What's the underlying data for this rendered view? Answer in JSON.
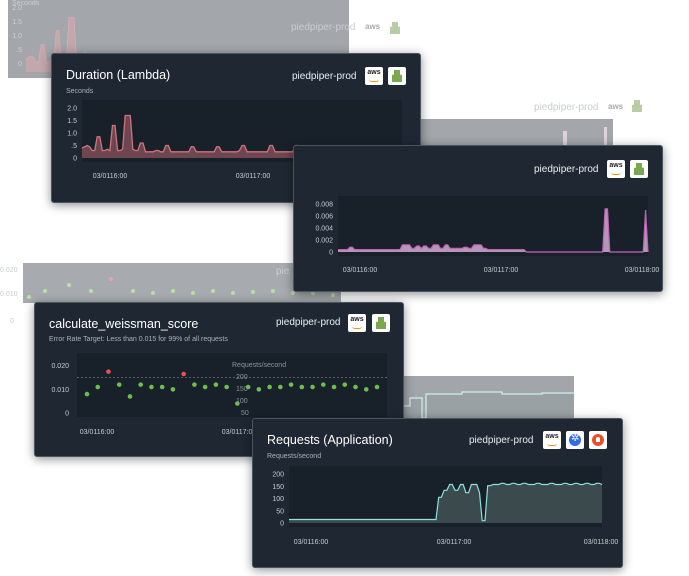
{
  "colors": {
    "card_bg": "#1f2832",
    "plot_bg": "#18212a",
    "duration_line": "#d1737e",
    "duration_fill": "#6e4650",
    "error_line": "#c064b6",
    "error_fill": "#b795ba",
    "requests_line": "#8fe0df",
    "requests_fill": "#3b4a4d",
    "point_green": "#6cc04a",
    "point_red": "#ef4f4f"
  },
  "ghosts": {
    "duration": {
      "unit": "Seconds",
      "yticks": [
        "2.0",
        "1.5",
        "1.0",
        ".5",
        "0"
      ],
      "brand": "piedpiper-prod",
      "aws_icon": "aws-icon",
      "lambda_icon": "lambda-icon"
    },
    "errors": {
      "brand": "piedpiper-prod",
      "aws_icon": "aws-icon",
      "lambda_icon": "lambda-icon"
    },
    "weissman": {
      "yticks": [
        "0.020",
        "0.010",
        "0"
      ],
      "brand": "pie"
    }
  },
  "duration": {
    "title": "Duration (Lambda)",
    "brand": "piedpiper-prod",
    "unit": "Seconds",
    "icons": [
      "aws-icon",
      "lambda-icon"
    ],
    "yticks": [
      "2.0",
      "1.5",
      "1.0",
      ".5",
      "0"
    ],
    "xticks": [
      "03/0116:00",
      "03/0117:00",
      "03/0118:00"
    ]
  },
  "errors": {
    "brand": "piedpiper-prod",
    "icons": [
      "aws-icon",
      "lambda-icon"
    ],
    "yticks": [
      "0.008",
      "0.006",
      "0.004",
      "0.002",
      "0"
    ],
    "xticks": [
      "03/0116:00",
      "03/0117:00",
      "03/0118:00"
    ]
  },
  "weissman": {
    "title": "calculate_weissman_score",
    "brand": "piedpiper-prod",
    "subtitle": "Error Rate Target: Less than 0.015 for 99% of all requests",
    "icons": [
      "aws-icon",
      "lambda-icon"
    ],
    "yticks": [
      "0.020",
      "0.010",
      "0"
    ],
    "xticks": [
      "03/0116:00",
      "03/0117:00"
    ]
  },
  "requests_peek": {
    "unit": "Requests/second",
    "yticks": [
      "200",
      "150",
      "100",
      "50",
      "0"
    ]
  },
  "requests": {
    "title": "Requests (Application)",
    "brand": "piedpiper-prod",
    "unit": "Requests/second",
    "icons": [
      "aws-icon",
      "kubernetes-icon",
      "prometheus-icon"
    ],
    "yticks": [
      "200",
      "150",
      "100",
      "50",
      "0"
    ],
    "xticks": [
      "03/0116:00",
      "03/0117:00",
      "03/0118:00"
    ]
  },
  "chart_data": [
    {
      "type": "area",
      "title": "Duration (Lambda)",
      "ylabel": "Seconds",
      "ylim": [
        0,
        2.0
      ],
      "xticks": [
        "03/0116:00",
        "03/0117:00",
        "03/0118:00"
      ],
      "values": [
        0.4,
        0.45,
        0.5,
        0.45,
        0.3,
        0.3,
        0.85,
        0.85,
        0.3,
        0.3,
        0.35,
        0.3,
        1.3,
        1.3,
        0.3,
        0.3,
        0.35,
        1.7,
        1.7,
        1.7,
        0.35,
        0.3,
        0.3,
        0.6,
        0.6,
        0.25,
        0.25,
        0.25,
        0.25,
        0.3,
        0.3,
        0.25,
        0.25,
        0.5,
        0.5,
        0.25,
        0.25,
        0.25,
        0.25,
        0.25,
        0.25,
        0.25,
        0.25,
        0.45,
        0.45,
        0.25,
        0.25,
        0.25,
        0.25,
        0.25,
        0.25,
        0.25,
        0.25,
        0.45,
        0.45,
        0.25,
        0.25,
        0.25,
        0.25,
        0.25,
        0.25,
        0.25,
        0.3,
        0.5,
        0.5,
        0.25,
        0.25,
        0.25,
        0.25,
        0.25,
        0.25,
        0.25,
        0.25,
        0.25,
        0.5,
        0.5,
        0.25,
        0.25,
        0.25,
        0.25,
        0.25,
        0.25,
        0.25,
        0.25,
        0.5,
        0.5,
        0.25,
        0.25,
        0.25,
        0.25,
        0.25,
        0.25,
        0.25,
        0.25,
        0.45,
        0.45,
        0.25,
        0.25,
        0.25,
        0.25,
        0.25,
        0.25,
        0.25,
        0.25,
        0.25,
        0.4,
        0.4,
        0.25,
        0.25,
        0.25,
        0.25,
        0.25,
        0.25,
        0.25,
        0.25,
        0.45,
        0.45,
        0.25,
        0.25,
        0.25,
        0.25,
        0.25,
        0.25,
        0.25,
        0.25,
        0.35,
        0.35
      ]
    },
    {
      "type": "area",
      "ylim": [
        0,
        0.008
      ],
      "xticks": [
        "03/0116:00",
        "03/0117:00",
        "03/0118:00"
      ],
      "values": [
        0.0004,
        0.0004,
        0.0004,
        0.0004,
        0.0004,
        0.0008,
        0.0008,
        0.0004,
        0.0004,
        0.0004,
        0.0004,
        0.0004,
        0.0004,
        0.0004,
        0.0004,
        0.0004,
        0.0004,
        0.0004,
        0.0004,
        0.0004,
        0.0004,
        0.0004,
        0.0004,
        0.0004,
        0.0004,
        0.0004,
        0.0004,
        0.0012,
        0.0012,
        0.0012,
        0.0012,
        0.0006,
        0.0006,
        0.001,
        0.001,
        0.0006,
        0.001,
        0.001,
        0.0006,
        0.0006,
        0.0012,
        0.0012,
        0.0012,
        0.0006,
        0.0006,
        0.0012,
        0.0012,
        0.0006,
        0.0006,
        0.0006,
        0.0006,
        0.0006,
        0.0006,
        0.0008,
        0.0008,
        0.0006,
        0.0006,
        0.0012,
        0.0012,
        0.0012,
        0.0012,
        0.0006,
        0.0006,
        0.0004,
        0.0004,
        0.0004,
        0.0004,
        0.0004,
        0.0004,
        0.0004,
        0.0004,
        0.0004,
        0.0004,
        0.0004,
        0.0004,
        0.0004,
        0.0004,
        0.0004,
        0.0004,
        0,
        0,
        0,
        0,
        0,
        0,
        0,
        0,
        0,
        0,
        0,
        0,
        0,
        0,
        0,
        0,
        0,
        0,
        0,
        0,
        0,
        0,
        0,
        0,
        0,
        0,
        0,
        0,
        0,
        0,
        0,
        0,
        0,
        0.0072,
        0.0072,
        0,
        0,
        0,
        0,
        0,
        0,
        0,
        0,
        0,
        0,
        0,
        0,
        0,
        0,
        0,
        0.007,
        0
      ]
    },
    {
      "type": "scatter",
      "title": "calculate_weissman_score",
      "subtitle": "Error Rate Target: Less than 0.015 for 99% of all requests",
      "ylim": [
        0,
        0.022
      ],
      "threshold": 0.015,
      "xticks": [
        "03/0116:00",
        "03/0117:00"
      ],
      "points": [
        {
          "x": 0,
          "y": 0.008,
          "color": "green"
        },
        {
          "x": 1,
          "y": 0.011,
          "color": "green"
        },
        {
          "x": 2,
          "y": 0.0175,
          "color": "red"
        },
        {
          "x": 3,
          "y": 0.012,
          "color": "green"
        },
        {
          "x": 4,
          "y": 0.007,
          "color": "green"
        },
        {
          "x": 5,
          "y": 0.012,
          "color": "green"
        },
        {
          "x": 6,
          "y": 0.011,
          "color": "green"
        },
        {
          "x": 7,
          "y": 0.011,
          "color": "green"
        },
        {
          "x": 8,
          "y": 0.01,
          "color": "green"
        },
        {
          "x": 9,
          "y": 0.0165,
          "color": "red"
        },
        {
          "x": 10,
          "y": 0.012,
          "color": "green"
        },
        {
          "x": 11,
          "y": 0.011,
          "color": "green"
        },
        {
          "x": 12,
          "y": 0.012,
          "color": "green"
        },
        {
          "x": 13,
          "y": 0.011,
          "color": "green"
        },
        {
          "x": 14,
          "y": 0.004,
          "color": "green"
        },
        {
          "x": 15,
          "y": 0.011,
          "color": "green"
        },
        {
          "x": 16,
          "y": 0.01,
          "color": "green"
        },
        {
          "x": 17,
          "y": 0.011,
          "color": "green"
        },
        {
          "x": 18,
          "y": 0.011,
          "color": "green"
        },
        {
          "x": 19,
          "y": 0.012,
          "color": "green"
        },
        {
          "x": 20,
          "y": 0.011,
          "color": "green"
        },
        {
          "x": 21,
          "y": 0.011,
          "color": "green"
        },
        {
          "x": 22,
          "y": 0.012,
          "color": "green"
        },
        {
          "x": 23,
          "y": 0.011,
          "color": "green"
        },
        {
          "x": 24,
          "y": 0.012,
          "color": "green"
        },
        {
          "x": 25,
          "y": 0.011,
          "color": "green"
        },
        {
          "x": 26,
          "y": 0.01,
          "color": "green"
        },
        {
          "x": 27,
          "y": 0.011,
          "color": "green"
        }
      ]
    },
    {
      "type": "area",
      "title": "Requests (Application)",
      "ylabel": "Requests/second",
      "ylim": [
        0,
        210
      ],
      "xticks": [
        "03/0116:00",
        "03/0117:00",
        "03/0118:00"
      ],
      "values": [
        15,
        15,
        15,
        15,
        15,
        15,
        15,
        15,
        15,
        15,
        15,
        15,
        15,
        15,
        15,
        15,
        15,
        15,
        15,
        15,
        15,
        15,
        15,
        15,
        15,
        15,
        15,
        15,
        15,
        15,
        15,
        15,
        15,
        15,
        15,
        15,
        15,
        15,
        15,
        15,
        15,
        15,
        15,
        15,
        15,
        15,
        15,
        15,
        15,
        15,
        15,
        15,
        15,
        15,
        15,
        110,
        110,
        140,
        140,
        165,
        165,
        140,
        140,
        165,
        165,
        130,
        130,
        165,
        165,
        165,
        130,
        10,
        10,
        160,
        160,
        165,
        165,
        165,
        170,
        170,
        165,
        165,
        170,
        170,
        165,
        165,
        170,
        170,
        165,
        165,
        165,
        170,
        170,
        165,
        165,
        165,
        170,
        170,
        165,
        165,
        165,
        170,
        170,
        165,
        165,
        170,
        170,
        165,
        165,
        170,
        170,
        165,
        165,
        170,
        170,
        165
      ]
    }
  ]
}
